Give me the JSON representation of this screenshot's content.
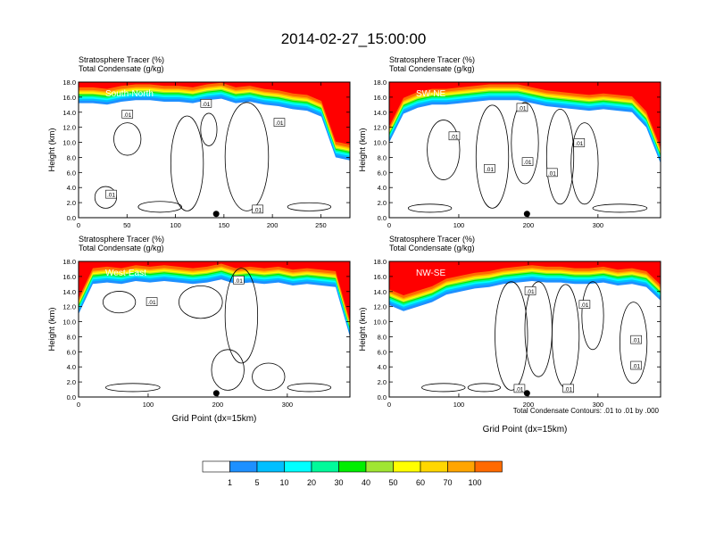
{
  "title": "2014-02-27_15:00:00",
  "colors": {
    "levels": [
      "#ffffff",
      "#1e90ff",
      "#00bfff",
      "#00ffff",
      "#00fa9a",
      "#00ee00",
      "#a0e632",
      "#ffff00",
      "#ffd700",
      "#ffa500",
      "#ff6a00",
      "#ff0000"
    ],
    "contour": "#000000",
    "axes": "#000000"
  },
  "chart_data": [
    {
      "type": "heatmap",
      "section": "South-North",
      "header_line1": "Stratosphere Tracer   (%)",
      "header_line2": "Total Condensate   (g/kg)",
      "ylabel": "Height (km)",
      "xlabel": "",
      "xlim": [
        0,
        280
      ],
      "ylim": [
        0,
        18
      ],
      "xticks": [
        0,
        50,
        100,
        150,
        200,
        250
      ],
      "yticks": [
        "0.0",
        "2.0",
        "4.0",
        "6.0",
        "8.0",
        "10.0",
        "12.0",
        "14.0",
        "16.0",
        "18.0"
      ],
      "tracer_base_km": [
        15.2,
        15.2,
        15.0,
        15.4,
        15.6,
        15.6,
        15.4,
        15.4,
        15.2,
        15.6,
        15.8,
        15.2,
        15.4,
        15.0,
        14.8,
        14.4,
        14.2,
        13.4,
        8.0,
        7.6
      ],
      "contour_labels": [
        ".01",
        ".01",
        ".01",
        ".01",
        ".01"
      ],
      "marker_x": 142
    },
    {
      "type": "heatmap",
      "section": "SW-NE",
      "header_line1": "Stratosphere Tracer   (%)",
      "header_line2": "Total Condensate   (g/kg)",
      "ylabel": "Height (km)",
      "xlabel": "",
      "xlim": [
        0,
        390
      ],
      "ylim": [
        0,
        18
      ],
      "xticks": [
        0,
        100,
        200,
        300
      ],
      "yticks": [
        "0.0",
        "2.0",
        "4.0",
        "6.0",
        "8.0",
        "10.0",
        "12.0",
        "14.0",
        "16.0",
        "18.0"
      ],
      "tracer_base_km": [
        10.0,
        13.8,
        14.6,
        15.0,
        15.0,
        15.2,
        15.4,
        15.6,
        15.6,
        15.6,
        15.2,
        14.8,
        14.6,
        14.4,
        14.2,
        14.4,
        14.2,
        14.0,
        12.0,
        7.2
      ],
      "contour_labels": [
        ".01",
        ".01",
        ".01",
        ".01",
        ".01",
        ".01"
      ],
      "marker_x": 198
    },
    {
      "type": "heatmap",
      "section": "West-East",
      "header_line1": "Stratosphere Tracer   (%)",
      "header_line2": "Total Condensate   (g/kg)",
      "ylabel": "Height (km)",
      "xlabel": "Grid Point (dx=15km)",
      "xlim": [
        0,
        390
      ],
      "ylim": [
        0,
        18
      ],
      "xticks": [
        0,
        100,
        200,
        300
      ],
      "yticks": [
        "0.0",
        "2.0",
        "4.0",
        "6.0",
        "8.0",
        "10.0",
        "12.0",
        "14.0",
        "16.0",
        "18.0"
      ],
      "tracer_base_km": [
        11.0,
        15.0,
        15.2,
        15.0,
        15.4,
        15.2,
        15.4,
        15.2,
        15.0,
        15.2,
        15.6,
        15.0,
        15.2,
        15.0,
        15.2,
        14.8,
        15.0,
        14.8,
        14.6,
        8.0
      ],
      "contour_labels": [
        ".01",
        ".01"
      ],
      "marker_x": 198
    },
    {
      "type": "heatmap",
      "section": "NW-SE",
      "header_line1": "Stratosphere Tracer   (%)",
      "header_line2": "Total Condensate   (g/kg)",
      "ylabel": "Height (km)",
      "xlabel": "Grid Point (dx=15km)",
      "xlim": [
        0,
        390
      ],
      "ylim": [
        0,
        18
      ],
      "xticks": [
        0,
        100,
        200,
        300
      ],
      "yticks": [
        "0.0",
        "2.0",
        "4.0",
        "6.0",
        "8.0",
        "10.0",
        "12.0",
        "14.0",
        "16.0",
        "18.0"
      ],
      "tracer_base_km": [
        12.2,
        11.4,
        12.0,
        12.6,
        13.6,
        14.0,
        14.4,
        14.6,
        15.0,
        15.2,
        15.4,
        15.2,
        15.2,
        15.0,
        15.0,
        15.2,
        14.8,
        15.0,
        14.6,
        12.8
      ],
      "contour_labels": [
        ".01",
        ".01",
        ".01",
        ".01",
        ".01",
        ".01"
      ],
      "marker_x": 198
    }
  ],
  "contour_note": "Total Condensate Contours: .01 to .01 by .000",
  "colorbar": {
    "labels": [
      "1",
      "5",
      "10",
      "20",
      "30",
      "40",
      "50",
      "60",
      "70",
      "100"
    ]
  }
}
